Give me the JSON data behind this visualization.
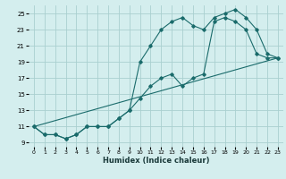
{
  "xlabel": "Humidex (Indice chaleur)",
  "bg_color": "#d4eeee",
  "grid_color": "#aad0d0",
  "line_color": "#1a6b6b",
  "xlim": [
    -0.5,
    23.5
  ],
  "ylim": [
    8.5,
    26.0
  ],
  "xticks": [
    0,
    1,
    2,
    3,
    4,
    5,
    6,
    7,
    8,
    9,
    10,
    11,
    12,
    13,
    14,
    15,
    16,
    17,
    18,
    19,
    20,
    21,
    22,
    23
  ],
  "yticks": [
    9,
    11,
    13,
    15,
    17,
    19,
    21,
    23,
    25
  ],
  "line1_x": [
    0,
    1,
    2,
    3,
    4,
    5,
    6,
    7,
    8,
    9,
    10,
    11,
    12,
    13,
    14,
    15,
    16,
    17,
    18,
    19,
    20,
    21,
    22,
    23
  ],
  "line1_y": [
    11,
    10,
    10,
    9.5,
    10,
    11,
    11,
    11,
    12,
    13,
    19,
    21,
    23,
    24,
    24.5,
    23.5,
    23,
    24.5,
    25,
    25.5,
    24.5,
    23,
    20,
    19.5
  ],
  "line2_x": [
    0,
    1,
    2,
    3,
    4,
    5,
    6,
    7,
    8,
    9,
    10,
    11,
    12,
    13,
    14,
    15,
    16,
    17,
    18,
    19,
    20,
    21,
    22,
    23
  ],
  "line2_y": [
    11,
    10,
    10,
    9.5,
    10,
    11,
    11,
    11,
    12,
    13,
    14.5,
    16,
    17,
    17.5,
    16,
    17,
    17.5,
    24,
    24.5,
    24,
    23,
    20,
    19.5,
    19.5
  ],
  "line3_x": [
    0,
    23
  ],
  "line3_y": [
    11,
    19.5
  ]
}
